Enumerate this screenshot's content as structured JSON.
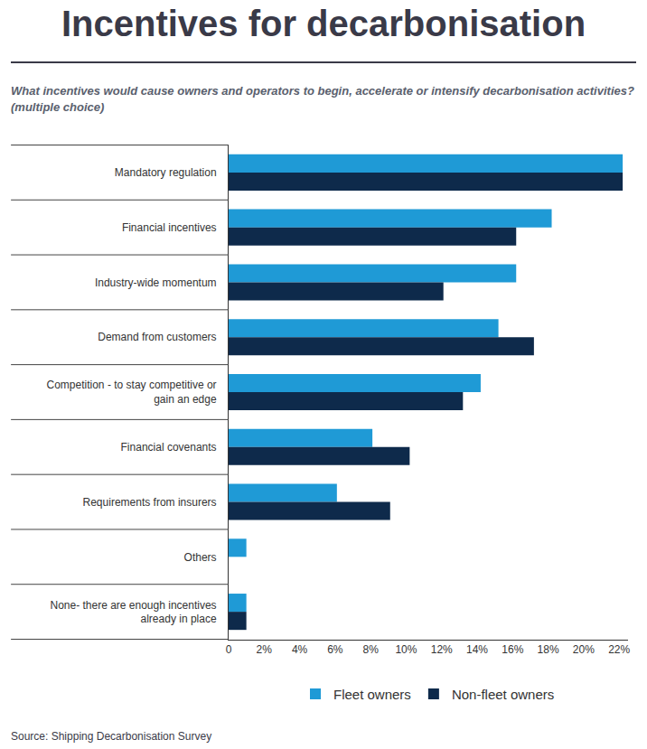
{
  "chart_data": {
    "type": "bar",
    "orientation": "horizontal",
    "title": "Incentives for decarbonisation",
    "subtitle": "What incentives would cause owners and operators to begin, accelerate or intensify decarbonisation activities? (multiple choice)",
    "source": "Source: Shipping Decarbonisation Survey",
    "categories": [
      "Mandatory regulation",
      "Financial incentives",
      "Industry-wide momentum",
      "Demand from customers",
      "Competition - to stay competitive or gain an edge",
      "Financial covenants",
      "Requirements from insurers",
      "Others",
      "None- there are enough incentives already in place"
    ],
    "series": [
      {
        "name": "Fleet owners",
        "color": "#1f9ad6",
        "values": [
          22.2,
          18.2,
          16.2,
          15.2,
          14.2,
          8.1,
          6.1,
          1.0,
          1.0
        ]
      },
      {
        "name": "Non-fleet owners",
        "color": "#0e2a4b",
        "values": [
          22.2,
          16.2,
          12.1,
          17.2,
          13.2,
          10.2,
          9.1,
          0,
          1.0
        ]
      }
    ],
    "xlim": [
      0,
      22.5
    ],
    "xticks": [
      0,
      {
        "value": 2,
        "label": "2%"
      },
      {
        "value": 4,
        "label": "4%"
      },
      {
        "value": 6,
        "label": "6%"
      },
      {
        "value": 8,
        "label": "8%"
      },
      {
        "value": 10,
        "label": "10%"
      },
      {
        "value": 12,
        "label": "12%"
      },
      {
        "value": 14,
        "label": "14%"
      },
      {
        "value": 16,
        "label": "16%"
      },
      {
        "value": 18,
        "label": "18%"
      },
      {
        "value": 20,
        "label": "20%"
      },
      {
        "value": 22,
        "label": "22%"
      }
    ],
    "grid": false,
    "legend": "bottom"
  }
}
